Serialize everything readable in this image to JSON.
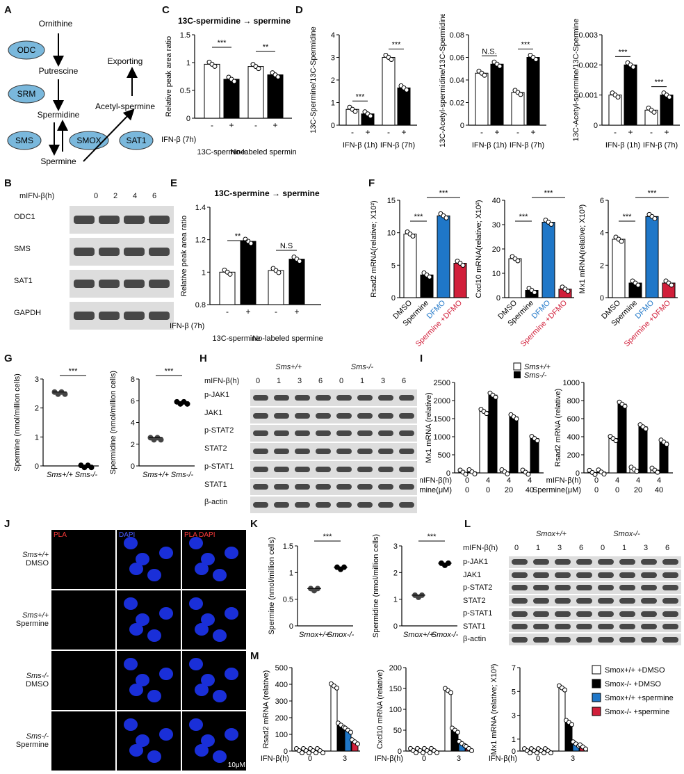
{
  "labels": {
    "A": "A",
    "B": "B",
    "C": "C",
    "D": "D",
    "E": "E",
    "F": "F",
    "G": "G",
    "H": "H",
    "I": "I",
    "J": "J",
    "K": "K",
    "L": "L",
    "M": "M"
  },
  "panelA": {
    "ornithine": "Ornithine",
    "putrescine": "Putrescine",
    "spermidine": "Spermidine",
    "spermine": "Spermine",
    "acetyl": "Acetyl-spermine",
    "exporting": "Exporting",
    "odc": "ODC",
    "srm": "SRM",
    "sms": "SMS",
    "smox": "SMOX",
    "sat1": "SAT1"
  },
  "panelB": {
    "header": "mIFN-β(h)",
    "times": [
      "0",
      "2",
      "4",
      "6"
    ],
    "rows": [
      "ODC1",
      "SMS",
      "SAT1",
      "GAPDH"
    ]
  },
  "panelC": {
    "title": "13C-spermidine → spermine",
    "ylabel": "Relative peak area ratio",
    "treat": "IFN-β (7h)",
    "groups": [
      "13C-spermine",
      "No-labeled spermine"
    ],
    "sig": [
      "***",
      "**"
    ]
  },
  "panelE": {
    "title": "13C-spermine → spermine",
    "ylabel": "Relative peak area ratio",
    "treat": "IFN-β (7h)",
    "groups": [
      "13C-spermine",
      "No-labeled spermine"
    ],
    "sig": [
      "**",
      "N.S"
    ]
  },
  "panelD": {
    "ylabels": [
      "13C-Spermine/13C-Spermidine",
      "13C-Acetyl-spermidine/13C-Spermidine",
      "13C-Acetyl-spermine/13C-Spermine"
    ],
    "xgroups": [
      "IFN-β (1h)",
      "IFN-β (7h)"
    ],
    "sig1": [
      "***",
      "***"
    ],
    "sig2": [
      "N.S.",
      "***"
    ],
    "sig3": [
      "***",
      "***"
    ]
  },
  "panelF": {
    "ylabels": [
      "Rsad2 mRNA(relative; X10²)",
      "Cxcl10 mRNA(relative; X10²)",
      "Mx1 mRNA(relative; X10³)"
    ],
    "cats": [
      "DMSO",
      "Spermine",
      "DFMO",
      "Spermine +DFMO"
    ]
  },
  "panelG": {
    "ylabels": [
      "Spermine (nmol/million cells)",
      "Spermidine (nmol/million cells)"
    ],
    "groups": [
      "Sms+/+",
      "Sms-/-"
    ],
    "sig": "***"
  },
  "panelH": {
    "wt": "Sms+/+",
    "ko": "Sms-/-",
    "header": "mIFN-β(h)",
    "times": [
      "0",
      "1",
      "3",
      "6",
      "0",
      "1",
      "3",
      "6"
    ],
    "rows": [
      "p-JAK1",
      "JAK1",
      "p-STAT2",
      "STAT2",
      "p-STAT1",
      "STAT1",
      "β-actin"
    ]
  },
  "panelI": {
    "legend": [
      "Sms+/+",
      "Sms-/-"
    ],
    "ylabels": [
      "Mx1 mRNA (relative)",
      "Rsad2 mRNA (relative)"
    ],
    "row1label": "mIFN-β(h)",
    "row1": [
      "0",
      "4",
      "4",
      "4"
    ],
    "row2label": "Spermine(μM)",
    "row2": [
      "0",
      "0",
      "20",
      "40"
    ]
  },
  "panelJ": {
    "cols": [
      "PLA",
      "DAPI",
      "PLA DAPI"
    ],
    "rows": [
      [
        "Sms+/+",
        "DMSO"
      ],
      [
        "Sms+/+",
        "Spermine"
      ],
      [
        "Sms-/-",
        "DMSO"
      ],
      [
        "Sms-/-",
        "Spermine"
      ]
    ],
    "scale": "10μM"
  },
  "panelK": {
    "ylabels": [
      "Spermine (nmol/million cells)",
      "Spermidine (nmol/million cells)"
    ],
    "groups": [
      "Smox+/+",
      "Smox-/-"
    ],
    "sig": "***"
  },
  "panelL": {
    "wt": "Smox+/+",
    "ko": "Smox-/-",
    "header": "mIFN-β(h)",
    "times": [
      "0",
      "1",
      "3",
      "6",
      "0",
      "1",
      "3",
      "6"
    ],
    "rows": [
      "p-JAK1",
      "JAK1",
      "p-STAT2",
      "STAT2",
      "p-STAT1",
      "STAT1",
      "β-actin"
    ]
  },
  "panelM": {
    "ylabels": [
      "Rsad2 mRNA (relative)",
      "Cxcl10 mRNA (relative)",
      "Mx1 mRNA (relative; X10³)"
    ],
    "xlabel": "IFN-β(h)",
    "times": [
      "0",
      "3"
    ],
    "legend": [
      "Smox+/+ +DMSO",
      "Smox-/- +DMSO",
      "Smox+/+ +spermine",
      "Smox-/- +spermine"
    ]
  },
  "colors": {
    "blue": "#1f77c8",
    "red": "#d11f3a",
    "ellipse": "#7ab8dc"
  },
  "chart_data": [
    {
      "id": "C",
      "type": "bar",
      "categories": [
        "13C-spermine -",
        "13C-spermine +",
        "No-labeled -",
        "No-labeled +"
      ],
      "values": [
        0.97,
        0.7,
        0.93,
        0.78
      ],
      "ylim": [
        0,
        1.5
      ]
    },
    {
      "id": "D1",
      "type": "bar",
      "categories": [
        "1h -",
        "1h +",
        "7h -",
        "7h +"
      ],
      "values": [
        0.7,
        0.5,
        3.0,
        1.65
      ],
      "ylim": [
        0,
        4
      ]
    },
    {
      "id": "D2",
      "type": "bar",
      "categories": [
        "1h -",
        "1h +",
        "7h -",
        "7h +"
      ],
      "values": [
        0.046,
        0.054,
        0.029,
        0.06
      ],
      "ylim": [
        0,
        0.08
      ]
    },
    {
      "id": "D3",
      "type": "bar",
      "categories": [
        "1h -",
        "1h +",
        "7h -",
        "7h +"
      ],
      "values": [
        0.001,
        0.002,
        0.0005,
        0.001
      ],
      "ylim": [
        0,
        0.003
      ]
    },
    {
      "id": "E",
      "type": "bar",
      "categories": [
        "13C-spermine -",
        "13C-spermine +",
        "No-labeled -",
        "No-labeled +"
      ],
      "values": [
        1.0,
        1.19,
        1.01,
        1.08
      ],
      "ylim": [
        0.8,
        1.4
      ]
    },
    {
      "id": "F1",
      "type": "bar",
      "categories": [
        "DMSO",
        "Spermine",
        "DFMO",
        "Spermine +DFMO"
      ],
      "values": [
        9.8,
        3.5,
        12.6,
        5.3
      ],
      "ylim": [
        0,
        15
      ]
    },
    {
      "id": "F2",
      "type": "bar",
      "categories": [
        "DMSO",
        "Spermine",
        "DFMO",
        "Spermine +DFMO"
      ],
      "values": [
        16,
        3,
        31,
        3.5
      ],
      "ylim": [
        0,
        40
      ]
    },
    {
      "id": "F3",
      "type": "bar",
      "categories": [
        "DMSO",
        "Spermine",
        "DFMO",
        "Spermine +DFMO"
      ],
      "values": [
        3.6,
        0.9,
        5.0,
        0.9
      ],
      "ylim": [
        0,
        6
      ]
    },
    {
      "id": "G1",
      "type": "scatter",
      "categories": [
        "Sms+/+",
        "Sms-/-"
      ],
      "values": [
        2.55,
        0.02
      ],
      "ylim": [
        0,
        3
      ]
    },
    {
      "id": "G2",
      "type": "scatter",
      "categories": [
        "Sms+/+",
        "Sms-/-"
      ],
      "values": [
        2.6,
        5.9
      ],
      "ylim": [
        0,
        8
      ]
    },
    {
      "id": "I1",
      "type": "bar",
      "series": [
        {
          "name": "Sms+/+",
          "values": [
            20,
            1700,
            30,
            20
          ]
        },
        {
          "name": "Sms-/-",
          "values": [
            30,
            2150,
            1550,
            950
          ]
        }
      ],
      "ylim": [
        0,
        2500
      ]
    },
    {
      "id": "I2",
      "type": "bar",
      "series": [
        {
          "name": "Sms+/+",
          "values": [
            5,
            380,
            40,
            30
          ]
        },
        {
          "name": "Sms-/-",
          "values": [
            10,
            760,
            510,
            340
          ]
        }
      ],
      "ylim": [
        0,
        1000
      ]
    },
    {
      "id": "K1",
      "type": "scatter",
      "categories": [
        "Smox+/+",
        "Smox-/-"
      ],
      "values": [
        0.7,
        1.1
      ],
      "ylim": [
        0,
        1.5
      ]
    },
    {
      "id": "K2",
      "type": "scatter",
      "categories": [
        "Smox+/+",
        "Smox-/-"
      ],
      "values": [
        1.15,
        2.35
      ],
      "ylim": [
        0,
        3
      ]
    },
    {
      "id": "M1",
      "type": "bar",
      "series": [
        {
          "name": "Smox+/+ +DMSO",
          "values": [
            2,
            390
          ]
        },
        {
          "name": "Smox-/- +DMSO",
          "values": [
            2,
            155
          ]
        },
        {
          "name": "Smox+/+ +spermine",
          "values": [
            2,
            125
          ]
        },
        {
          "name": "Smox-/- +spermine",
          "values": [
            2,
            55
          ]
        }
      ],
      "ylim": [
        0,
        500
      ]
    },
    {
      "id": "M2",
      "type": "bar",
      "series": [
        {
          "name": "Smox+/+ +DMSO",
          "values": [
            1,
            145
          ]
        },
        {
          "name": "Smox-/- +DMSO",
          "values": [
            1,
            50
          ]
        },
        {
          "name": "Smox+/+ +spermine",
          "values": [
            1,
            18
          ]
        },
        {
          "name": "Smox-/- +spermine",
          "values": [
            1,
            6
          ]
        }
      ],
      "ylim": [
        0,
        200
      ]
    },
    {
      "id": "M3",
      "type": "bar",
      "series": [
        {
          "name": "Smox+/+ +DMSO",
          "values": [
            0.02,
            5.3
          ]
        },
        {
          "name": "Smox-/- +DMSO",
          "values": [
            0.02,
            2.4
          ]
        },
        {
          "name": "Smox+/+ +spermine",
          "values": [
            0.02,
            0.6
          ]
        },
        {
          "name": "Smox-/- +spermine",
          "values": [
            0.02,
            0.35
          ]
        }
      ],
      "ylim": [
        0,
        7
      ]
    }
  ]
}
